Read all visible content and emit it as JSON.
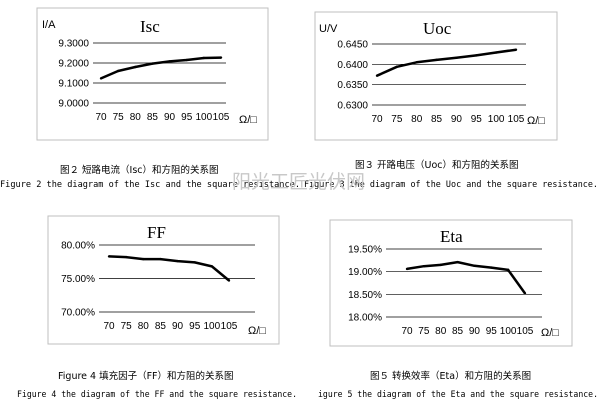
{
  "chart_data": [
    {
      "type": "line",
      "title": "Isc",
      "ylabel": "I/A",
      "xunit": "Ω/□",
      "x": [
        70,
        75,
        80,
        85,
        90,
        95,
        100,
        105
      ],
      "values": [
        9.123,
        9.16,
        9.18,
        9.197,
        9.208,
        9.215,
        9.225,
        9.227
      ],
      "ylim": [
        9.0,
        9.3
      ],
      "ytick_labels": [
        "9.3000",
        "9.2000",
        "9.1000",
        "9.0000"
      ],
      "xtick_labels": [
        "70",
        "75",
        "80",
        "85",
        "90",
        "95",
        "100",
        "105"
      ],
      "grid": true,
      "caption_cn": "图２ 短路电流（Isc）和方阻的关系图",
      "caption_en": "Figure 2 the diagram of the Isc and the square resistance."
    },
    {
      "type": "line",
      "title": "Uoc",
      "ylabel": "U/V",
      "xunit": "Ω/□",
      "x": [
        70,
        75,
        80,
        85,
        90,
        95,
        100,
        105
      ],
      "values": [
        0.6372,
        0.6394,
        0.6405,
        0.6411,
        0.6416,
        0.6422,
        0.6429,
        0.6436
      ],
      "ylim": [
        0.63,
        0.645
      ],
      "ytick_labels": [
        "0.6450",
        "0.6400",
        "0.6350",
        "0.6300"
      ],
      "xtick_labels": [
        "70",
        "75",
        "80",
        "85",
        "90",
        "95",
        "100",
        "105"
      ],
      "grid": true,
      "caption_cn": "图３ 开路电压（Uoc）和方阻的关系图",
      "caption_en": "Figure 3 the diagram of the Uoc and the square resistance."
    },
    {
      "type": "line",
      "title": "FF",
      "ylabel": "",
      "xunit": "Ω/□",
      "x": [
        70,
        75,
        80,
        85,
        90,
        95,
        100,
        105
      ],
      "values": [
        78.3,
        78.2,
        77.9,
        77.9,
        77.6,
        77.4,
        76.8,
        74.7
      ],
      "ylim": [
        70,
        80
      ],
      "ytick_labels": [
        "80.00%",
        "75.00%",
        "70.00%"
      ],
      "xtick_labels": [
        "70",
        "75",
        "80",
        "85",
        "90",
        "95",
        "100",
        "105"
      ],
      "grid": true,
      "caption_cn": "Figure 4 填充因子（FF）和方阻的关系图",
      "caption_en": "Figure 4 the diagram of the FF and the square resistance."
    },
    {
      "type": "line",
      "title": "Eta",
      "ylabel": "",
      "xunit": "Ω/□",
      "x": [
        70,
        75,
        80,
        85,
        90,
        95,
        100,
        105
      ],
      "values": [
        19.06,
        19.12,
        19.15,
        19.21,
        19.13,
        19.09,
        19.04,
        18.52
      ],
      "ylim": [
        18.0,
        19.5
      ],
      "ytick_labels": [
        "19.50%",
        "19.00%",
        "18.50%",
        "18.00%"
      ],
      "xtick_labels": [
        "70",
        "75",
        "80",
        "85",
        "90",
        "95",
        "100",
        "105"
      ],
      "grid": true,
      "caption_cn": "图５ 转换效率（Eta）和方阻的关系图",
      "caption_en": "igure 5 the diagram of the Eta and the square resistance."
    }
  ],
  "watermark": "阳光工匠光伏网"
}
